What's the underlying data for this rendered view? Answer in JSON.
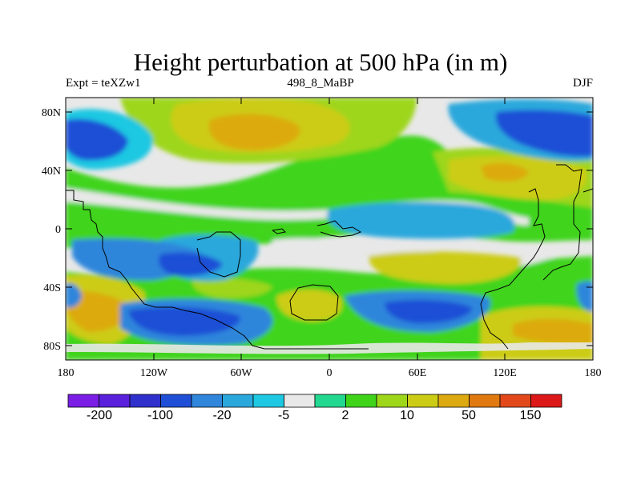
{
  "title": "Height perturbation at 500 hPa (in m)",
  "subtitle_left": "Expt = teXZw1",
  "subtitle_center": "498_8_MaBP",
  "subtitle_right": "DJF",
  "y_ticks": [
    "80N",
    "40N",
    "0",
    "40S",
    "80S"
  ],
  "x_ticks": [
    "180",
    "120W",
    "60W",
    "0",
    "60E",
    "120E",
    "180"
  ],
  "colorbar": {
    "colors": [
      "#7a1ee6",
      "#5a20dc",
      "#3030cc",
      "#1f4fd6",
      "#2f86db",
      "#2aa8dc",
      "#1ec8e2",
      "#e8e8e8",
      "#22d890",
      "#3fd41a",
      "#9ed61a",
      "#cccc16",
      "#dcaa10",
      "#e07a10",
      "#e2481a",
      "#dc1818"
    ],
    "labels": [
      "-200",
      "-100",
      "-20",
      "-5",
      "2",
      "10",
      "50",
      "150"
    ]
  }
}
